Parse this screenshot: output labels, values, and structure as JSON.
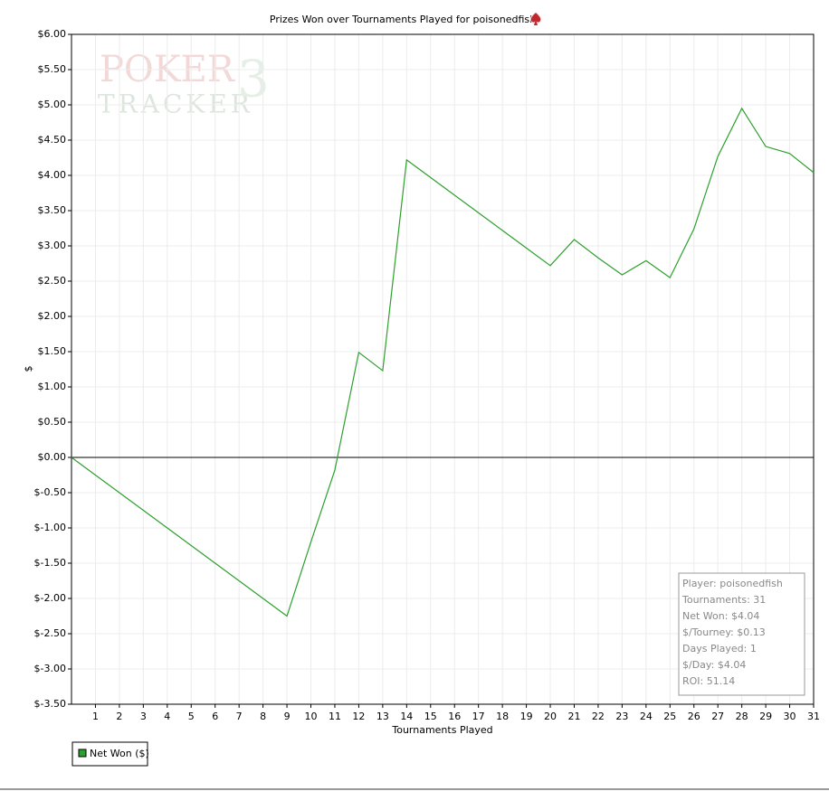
{
  "chart_data": {
    "type": "line",
    "title": "Prizes Won over Tournaments Played for poisonedfish",
    "xlabel": "Tournaments Played",
    "ylabel": "$",
    "watermark": [
      "POKER",
      "TRACKER",
      "3"
    ],
    "x": [
      0,
      1,
      2,
      3,
      4,
      5,
      6,
      7,
      8,
      9,
      10,
      11,
      12,
      13,
      14,
      15,
      16,
      17,
      18,
      19,
      20,
      21,
      22,
      23,
      24,
      25,
      26,
      27,
      28,
      29,
      30,
      31
    ],
    "series": [
      {
        "name": "Net Won ($)",
        "color": "#2ca02c",
        "values": [
          0,
          -0.25,
          -0.5,
          -0.75,
          -1.0,
          -1.25,
          -1.5,
          -1.75,
          -2.0,
          -2.25,
          -1.2,
          -0.18,
          1.49,
          1.23,
          4.22,
          3.97,
          3.72,
          3.47,
          3.22,
          2.97,
          2.72,
          3.09,
          2.83,
          2.59,
          2.79,
          2.55,
          3.24,
          4.27,
          4.95,
          4.41,
          4.31,
          4.04
        ]
      }
    ],
    "xlim": [
      0,
      31
    ],
    "xticks": [
      1,
      2,
      3,
      4,
      5,
      6,
      7,
      8,
      9,
      10,
      11,
      12,
      13,
      14,
      15,
      16,
      17,
      18,
      19,
      20,
      21,
      22,
      23,
      24,
      25,
      26,
      27,
      28,
      29,
      30,
      31
    ],
    "ylim": [
      -3.5,
      6
    ],
    "yticks": [
      {
        "value": 6,
        "label": "$6.00"
      },
      {
        "value": 5.5,
        "label": "$5.50"
      },
      {
        "value": 5,
        "label": "$5.00"
      },
      {
        "value": 4.5,
        "label": "$4.50"
      },
      {
        "value": 4,
        "label": "$4.00"
      },
      {
        "value": 3.5,
        "label": "$3.50"
      },
      {
        "value": 3,
        "label": "$3.00"
      },
      {
        "value": 2.5,
        "label": "$2.50"
      },
      {
        "value": 2,
        "label": "$2.00"
      },
      {
        "value": 1.5,
        "label": "$1.50"
      },
      {
        "value": 1,
        "label": "$1.00"
      },
      {
        "value": 0.5,
        "label": "$0.50"
      },
      {
        "value": 0,
        "label": "$0.00"
      },
      {
        "value": -0.5,
        "label": "$-0.50"
      },
      {
        "value": -1,
        "label": "$-1.00"
      },
      {
        "value": -1.5,
        "label": "$-1.50"
      },
      {
        "value": -2,
        "label": "$-2.00"
      },
      {
        "value": -2.5,
        "label": "$-2.50"
      },
      {
        "value": -3,
        "label": "$-3.00"
      },
      {
        "value": -3.5,
        "label": "$-3.50"
      }
    ],
    "grid": true,
    "legend": "bottom-left",
    "info": [
      "Player: poisonedfish",
      "Tournaments: 31",
      "Net Won: $4.04",
      "$/Tourney: $0.13",
      "Days Played: 1",
      "$/Day: $4.04",
      "ROI: 51.14"
    ]
  }
}
